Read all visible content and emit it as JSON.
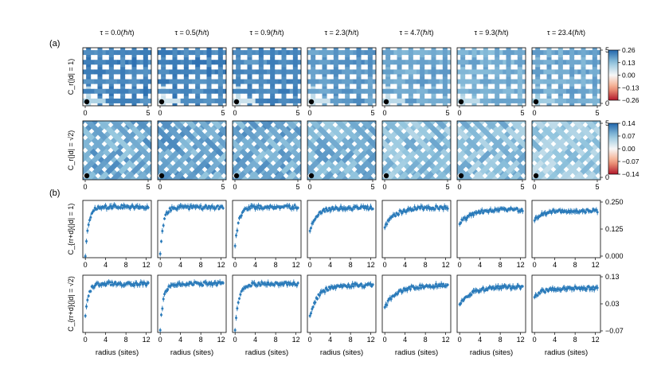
{
  "figure": {
    "panel_labels": [
      "(a)",
      "(b)"
    ],
    "column_titles": [
      "τ = 0.0(ℏ/t)",
      "τ = 0.5(ℏ/t)",
      "τ = 0.9(ℏ/t)",
      "τ = 2.3(ℏ/t)",
      "τ = 4.7(ℏ/t)",
      "τ = 9.3(ℏ/t)",
      "τ = 23.4(ℏ/t)"
    ],
    "row_labels": [
      "C_r(|d| = 1)",
      "C_r(|d| = √2)",
      "C_{rr+d}(|d| = 1)",
      "C_{rr+d}(|d| = √2)"
    ],
    "xlabel_bottom": "radius (sites)",
    "colors": {
      "series": "#2b7bba",
      "heat_pos": "#2166ac",
      "heat_neg": "#b2182b",
      "origin_marker": "#000000"
    }
  },
  "chart_data": [
    {
      "type": "heatmap",
      "name": "row1",
      "x_ticks": [
        "0",
        "5"
      ],
      "y_ticks": [
        "0",
        "5"
      ],
      "colorbar": {
        "ticks": [
          "0.26",
          "0.13",
          "0.00",
          "−0.13",
          "−0.26"
        ],
        "range": [
          -0.26,
          0.26
        ],
        "colormap": "RdBu"
      },
      "mean_values": [
        0.22,
        0.22,
        0.21,
        0.19,
        0.17,
        0.16,
        0.17
      ],
      "low_values": [
        0.08,
        0.05,
        0.06,
        0.07,
        0.07,
        0.08,
        0.12
      ]
    },
    {
      "type": "heatmap",
      "name": "row2",
      "x_ticks": [
        "0",
        "5"
      ],
      "y_ticks": [
        "0",
        "5"
      ],
      "colorbar": {
        "ticks": [
          "0.14",
          "0.07",
          "0.00",
          "−0.07",
          "−0.14"
        ],
        "range": [
          -0.14,
          0.14
        ],
        "colormap": "RdBu"
      },
      "mean_values": [
        0.09,
        0.09,
        0.09,
        0.08,
        0.07,
        0.07,
        0.06
      ],
      "low_values": [
        -0.02,
        -0.05,
        -0.05,
        -0.01,
        0.01,
        0.02,
        0.03
      ]
    },
    {
      "type": "scatter",
      "name": "row3",
      "x_ticks": [
        "0",
        "4",
        "8",
        "12"
      ],
      "xlim": [
        -0.5,
        13
      ],
      "y_ticks": [
        "0.250",
        "0.125",
        "0.000"
      ],
      "ylim": [
        0,
        0.25
      ],
      "plateau": [
        0.222,
        0.22,
        0.222,
        0.218,
        0.22,
        0.21,
        0.205
      ],
      "first_point": [
        0.01,
        0.02,
        0.055,
        0.12,
        0.135,
        0.15,
        0.165
      ],
      "rise_rate": [
        1.6,
        1.6,
        1.3,
        0.75,
        0.45,
        0.4,
        0.6
      ]
    },
    {
      "type": "scatter",
      "name": "row4",
      "x_ticks": [
        "0",
        "4",
        "8",
        "12"
      ],
      "xlim": [
        -0.5,
        13
      ],
      "y_ticks": [
        "0.13",
        "0.03",
        "−0.07"
      ],
      "ylim": [
        -0.07,
        0.13
      ],
      "plateau": [
        0.1,
        0.1,
        0.1,
        0.095,
        0.095,
        0.09,
        0.085
      ],
      "first_point": [
        -0.01,
        -0.06,
        -0.06,
        -0.01,
        0.02,
        0.03,
        0.055
      ],
      "rise_rate": [
        1.6,
        1.6,
        1.4,
        0.6,
        0.4,
        0.4,
        0.6
      ]
    }
  ]
}
